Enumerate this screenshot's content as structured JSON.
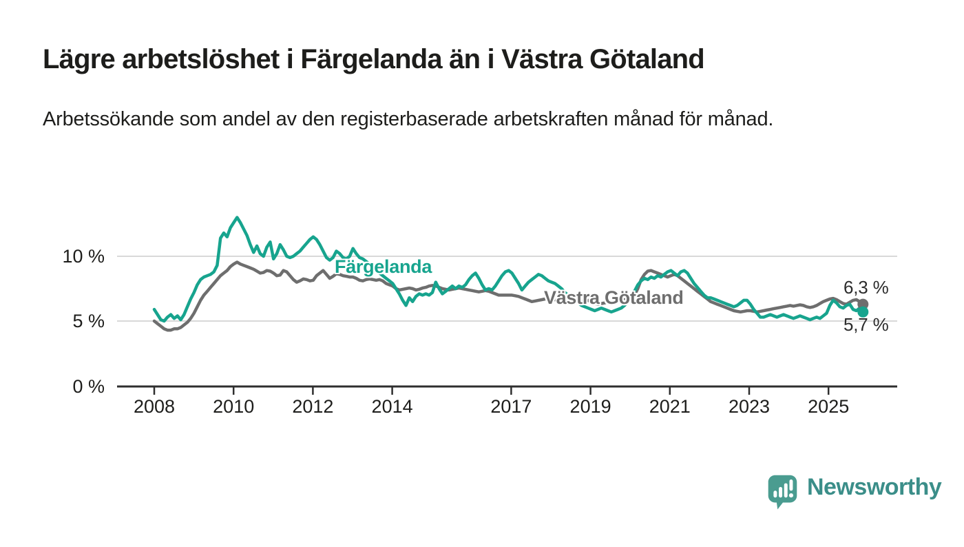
{
  "header": {
    "title": "Lägre arbetslöshet i Färgelanda än i Västra Götaland",
    "subtitle": "Arbetssökande som andel av den registerbaserade arbetskraften månad för månad."
  },
  "footer": {
    "brand_name": "Newsworthy"
  },
  "chart_data": {
    "type": "line",
    "title": "Lägre arbetslöshet i Färgelanda än i Västra Götaland",
    "subtitle": "Arbetssökande som andel av den registerbaserade arbetskraften månad för månad.",
    "unit": "percent",
    "x_interval": "monthly",
    "x_range": [
      "2008-01",
      "2025-11"
    ],
    "ylim": [
      0,
      13.5
    ],
    "ytick_values": [
      0,
      5,
      10
    ],
    "ytick_labels": [
      "0 %",
      "5 %",
      "10 %"
    ],
    "xtick_years": [
      2008,
      2010,
      2012,
      2014,
      2017,
      2019,
      2021,
      2023,
      2025
    ],
    "grid": "horizontal",
    "legend_position": "inline-line-labels",
    "colors": {
      "fargelanda": "#17a48e",
      "vastra_gotaland": "#6e6e6e",
      "grid": "#d8d8d8",
      "axis": "#2e2e2e",
      "text": "#1d1d1b"
    },
    "series": [
      {
        "name": "Västra Götaland",
        "color_key": "vastra_gotaland",
        "end_value": 6.3,
        "end_label": "6,3 %",
        "values": [
          5.0,
          4.8,
          4.6,
          4.4,
          4.3,
          4.3,
          4.4,
          4.4,
          4.5,
          4.7,
          4.9,
          5.2,
          5.6,
          6.1,
          6.6,
          7.0,
          7.3,
          7.6,
          7.9,
          8.2,
          8.5,
          8.7,
          8.9,
          9.2,
          9.4,
          9.55,
          9.4,
          9.3,
          9.2,
          9.1,
          9.0,
          8.85,
          8.7,
          8.75,
          8.9,
          8.85,
          8.7,
          8.5,
          8.55,
          8.9,
          8.8,
          8.5,
          8.2,
          8.0,
          8.1,
          8.25,
          8.2,
          8.1,
          8.15,
          8.5,
          8.7,
          8.9,
          8.6,
          8.3,
          8.45,
          8.65,
          8.6,
          8.5,
          8.45,
          8.4,
          8.4,
          8.3,
          8.15,
          8.1,
          8.2,
          8.25,
          8.2,
          8.15,
          8.2,
          8.1,
          7.9,
          7.8,
          7.7,
          7.5,
          7.4,
          7.45,
          7.5,
          7.55,
          7.5,
          7.4,
          7.45,
          7.55,
          7.6,
          7.7,
          7.75,
          7.7,
          7.6,
          7.5,
          7.45,
          7.4,
          7.45,
          7.5,
          7.55,
          7.5,
          7.45,
          7.4,
          7.35,
          7.3,
          7.25,
          7.3,
          7.35,
          7.3,
          7.2,
          7.1,
          7.0,
          7.0,
          7.0,
          7.0,
          7.0,
          6.95,
          6.9,
          6.8,
          6.7,
          6.6,
          6.5,
          6.55,
          6.6,
          6.65,
          6.7,
          6.75,
          6.7,
          6.65,
          6.6,
          6.5,
          6.45,
          6.4,
          6.35,
          6.4,
          6.45,
          6.5,
          6.55,
          6.6,
          6.45,
          6.35,
          6.3,
          6.35,
          6.4,
          6.45,
          6.5,
          6.5,
          6.55,
          6.6,
          6.65,
          6.7,
          6.9,
          7.0,
          7.5,
          8.2,
          8.6,
          8.85,
          8.9,
          8.8,
          8.7,
          8.6,
          8.5,
          8.4,
          8.5,
          8.6,
          8.5,
          8.3,
          8.1,
          7.9,
          7.7,
          7.5,
          7.3,
          7.1,
          6.9,
          6.7,
          6.5,
          6.4,
          6.3,
          6.2,
          6.1,
          6.0,
          5.9,
          5.8,
          5.75,
          5.7,
          5.75,
          5.8,
          5.8,
          5.75,
          5.7,
          5.75,
          5.8,
          5.85,
          5.9,
          5.95,
          6.0,
          6.05,
          6.1,
          6.15,
          6.2,
          6.15,
          6.2,
          6.25,
          6.2,
          6.1,
          6.05,
          6.1,
          6.2,
          6.35,
          6.5,
          6.6,
          6.7,
          6.75,
          6.65,
          6.5,
          6.35,
          6.3,
          6.45,
          6.6,
          6.65,
          6.5,
          6.3
        ]
      },
      {
        "name": "Färgelanda",
        "color_key": "fargelanda",
        "end_value": 5.7,
        "end_label": "5,7 %",
        "values": [
          5.9,
          5.5,
          5.1,
          5.0,
          5.3,
          5.5,
          5.2,
          5.4,
          5.1,
          5.5,
          6.1,
          6.7,
          7.2,
          7.8,
          8.2,
          8.4,
          8.5,
          8.6,
          8.8,
          9.3,
          11.4,
          11.8,
          11.5,
          12.2,
          12.6,
          13.0,
          12.6,
          12.1,
          11.6,
          10.9,
          10.3,
          10.8,
          10.2,
          10.0,
          10.7,
          11.1,
          9.8,
          10.2,
          10.9,
          10.5,
          10.0,
          9.9,
          10.0,
          10.2,
          10.4,
          10.7,
          11.0,
          11.3,
          11.5,
          11.3,
          10.9,
          10.4,
          9.9,
          9.7,
          9.9,
          10.4,
          10.2,
          9.9,
          9.8,
          10.0,
          10.6,
          10.2,
          9.9,
          9.8,
          9.6,
          9.4,
          9.2,
          9.0,
          8.7,
          8.5,
          8.3,
          8.1,
          7.9,
          7.5,
          7.1,
          6.6,
          6.2,
          6.8,
          6.5,
          6.9,
          7.1,
          7.0,
          7.1,
          7.0,
          7.2,
          8.0,
          7.5,
          7.1,
          7.3,
          7.5,
          7.7,
          7.5,
          7.7,
          7.6,
          7.8,
          8.2,
          8.5,
          8.7,
          8.3,
          7.8,
          7.4,
          7.5,
          7.4,
          7.7,
          8.1,
          8.5,
          8.8,
          8.9,
          8.7,
          8.3,
          7.9,
          7.4,
          7.7,
          8.0,
          8.2,
          8.4,
          8.6,
          8.5,
          8.3,
          8.1,
          8.0,
          7.9,
          7.7,
          7.5,
          7.2,
          7.0,
          6.8,
          6.6,
          6.4,
          6.2,
          6.1,
          6.0,
          5.9,
          5.8,
          5.9,
          6.0,
          5.9,
          5.8,
          5.7,
          5.8,
          5.9,
          6.0,
          6.2,
          6.5,
          6.9,
          7.3,
          7.8,
          8.1,
          8.3,
          8.2,
          8.4,
          8.3,
          8.5,
          8.4,
          8.6,
          8.8,
          8.9,
          8.7,
          8.5,
          8.8,
          8.9,
          8.7,
          8.3,
          7.9,
          7.6,
          7.3,
          7.0,
          6.8,
          6.8,
          6.7,
          6.6,
          6.5,
          6.4,
          6.3,
          6.2,
          6.1,
          6.2,
          6.4,
          6.6,
          6.6,
          6.3,
          5.9,
          5.6,
          5.3,
          5.3,
          5.4,
          5.5,
          5.4,
          5.3,
          5.4,
          5.5,
          5.4,
          5.3,
          5.2,
          5.3,
          5.4,
          5.3,
          5.2,
          5.1,
          5.2,
          5.3,
          5.2,
          5.4,
          5.6,
          6.2,
          6.6,
          6.4,
          6.1,
          6.0,
          6.2,
          6.3,
          5.9,
          5.8,
          6.0,
          5.7
        ]
      }
    ]
  }
}
